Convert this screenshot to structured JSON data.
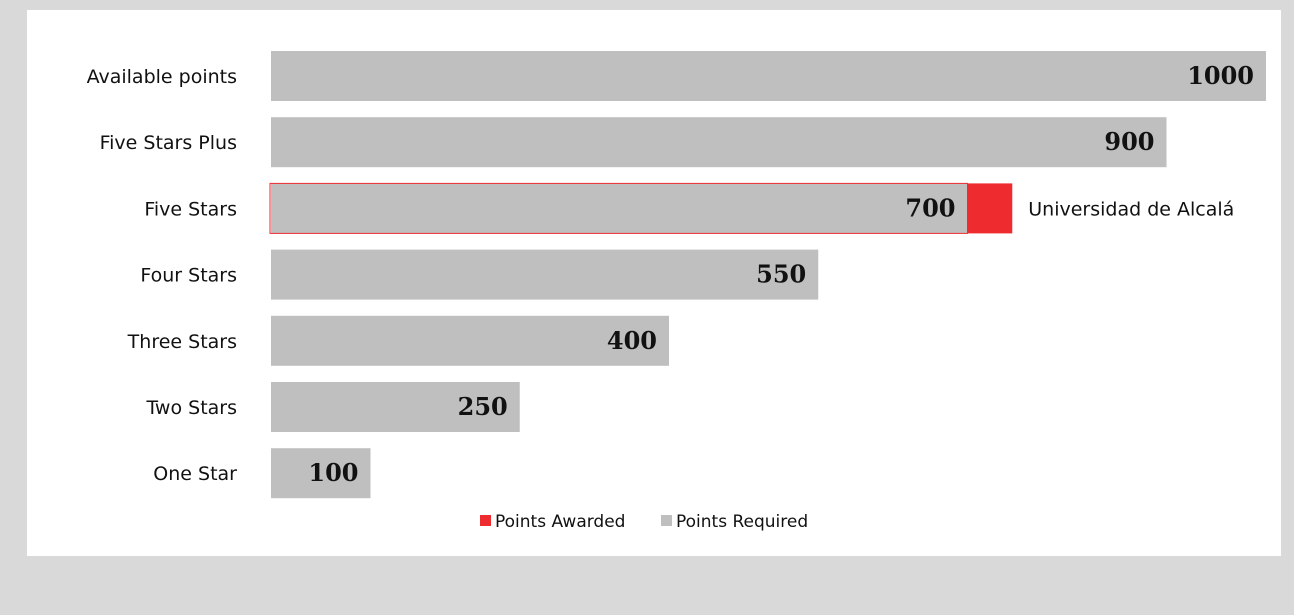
{
  "chart_data": {
    "type": "bar",
    "orientation": "horizontal",
    "categories": [
      "Available points",
      "Five Stars Plus",
      "Five Stars",
      "Four Stars",
      "Three Stars",
      "Two Stars",
      "One Star"
    ],
    "series": [
      {
        "name": "Points Required",
        "color": "#bfbfbf",
        "values": [
          1000,
          900,
          700,
          550,
          400,
          250,
          100
        ]
      },
      {
        "name": "Points Awarded",
        "color": "#ee2b2f",
        "values": [
          null,
          null,
          745,
          null,
          null,
          null,
          null
        ]
      }
    ],
    "value_labels": [
      "1000",
      "900",
      "700",
      "550",
      "400",
      "250",
      "100"
    ],
    "annotation": {
      "category": "Five Stars",
      "text": "Universidad de Alcalá"
    },
    "xlim": [
      0,
      1000
    ],
    "grid": false,
    "legend_position": "bottom",
    "legend": [
      "Points Awarded",
      "Points Required"
    ]
  }
}
